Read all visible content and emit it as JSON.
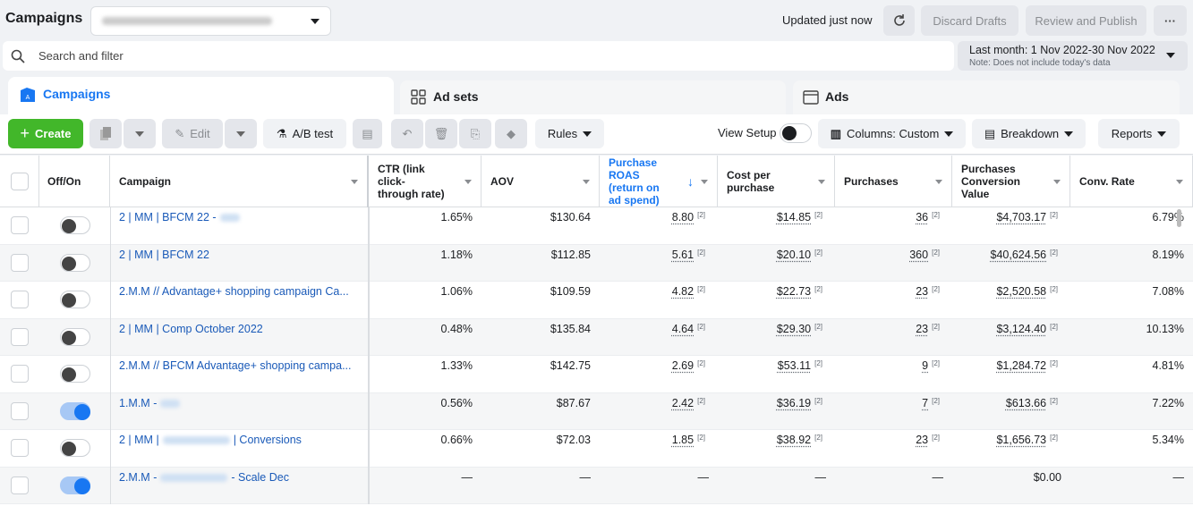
{
  "header": {
    "title": "Campaigns",
    "status": "Updated just now",
    "discard": "Discard Drafts",
    "publish": "Review and Publish"
  },
  "search": {
    "placeholder": "Search and filter"
  },
  "date_range": {
    "label": "Last month: 1 Nov 2022-30 Nov 2022",
    "note": "Note: Does not include today's data"
  },
  "tabs": [
    "Campaigns",
    "Ad sets",
    "Ads"
  ],
  "toolbar": {
    "create": "Create",
    "edit": "Edit",
    "ab_test": "A/B test",
    "rules": "Rules",
    "view_setup": "View Setup",
    "columns": "Columns: Custom",
    "breakdown": "Breakdown",
    "reports": "Reports"
  },
  "table": {
    "columns": [
      "Off/On",
      "Campaign",
      "CTR (link click-through rate)",
      "AOV",
      "Purchase ROAS (return on ad spend)",
      "Cost per purchase",
      "Purchases",
      "Purchases Conversion Value",
      "Conv. Rate"
    ],
    "sorted_column": 4,
    "footnote": "[2]",
    "rows": [
      {
        "on": false,
        "campaign": "2 | MM | BFCM 22 -",
        "blurred": true,
        "cells": [
          "1.65%",
          "$130.64",
          "8.80",
          "$14.85",
          "36",
          "$4,703.17",
          "6.79%"
        ],
        "footnoted": true
      },
      {
        "on": false,
        "campaign": "2 | MM | BFCM 22",
        "blurred": false,
        "cells": [
          "1.18%",
          "$112.85",
          "5.61",
          "$20.10",
          "360",
          "$40,624.56",
          "8.19%"
        ],
        "footnoted": true
      },
      {
        "on": false,
        "campaign": "2.M.M // Advantage+ shopping campaign Ca...",
        "blurred": false,
        "cells": [
          "1.06%",
          "$109.59",
          "4.82",
          "$22.73",
          "23",
          "$2,520.58",
          "7.08%"
        ],
        "footnoted": true
      },
      {
        "on": false,
        "campaign": "2 | MM | Comp October 2022",
        "blurred": false,
        "cells": [
          "0.48%",
          "$135.84",
          "4.64",
          "$29.30",
          "23",
          "$3,124.40",
          "10.13%"
        ],
        "footnoted": true
      },
      {
        "on": false,
        "campaign": "2.M.M // BFCM Advantage+ shopping campa...",
        "blurred": false,
        "cells": [
          "1.33%",
          "$142.75",
          "2.69",
          "$53.11",
          "9",
          "$1,284.72",
          "4.81%"
        ],
        "footnoted": true
      },
      {
        "on": true,
        "campaign": "1.M.M -",
        "blurred": true,
        "cells": [
          "0.56%",
          "$87.67",
          "2.42",
          "$36.19",
          "7",
          "$613.66",
          "7.22%"
        ],
        "footnoted": true
      },
      {
        "on": false,
        "campaign": "2 | MM |",
        "blurred": true,
        "campaign_suffix": "| Conversions",
        "cells": [
          "0.66%",
          "$72.03",
          "1.85",
          "$38.92",
          "23",
          "$1,656.73",
          "5.34%"
        ],
        "footnoted": true
      },
      {
        "on": true,
        "campaign": "2.M.M -",
        "blurred": true,
        "campaign_suffix": "- Scale Dec",
        "cells": [
          "—",
          "—",
          "—",
          "—",
          "—",
          "$0.00",
          "—"
        ],
        "footnoted": false
      }
    ]
  }
}
